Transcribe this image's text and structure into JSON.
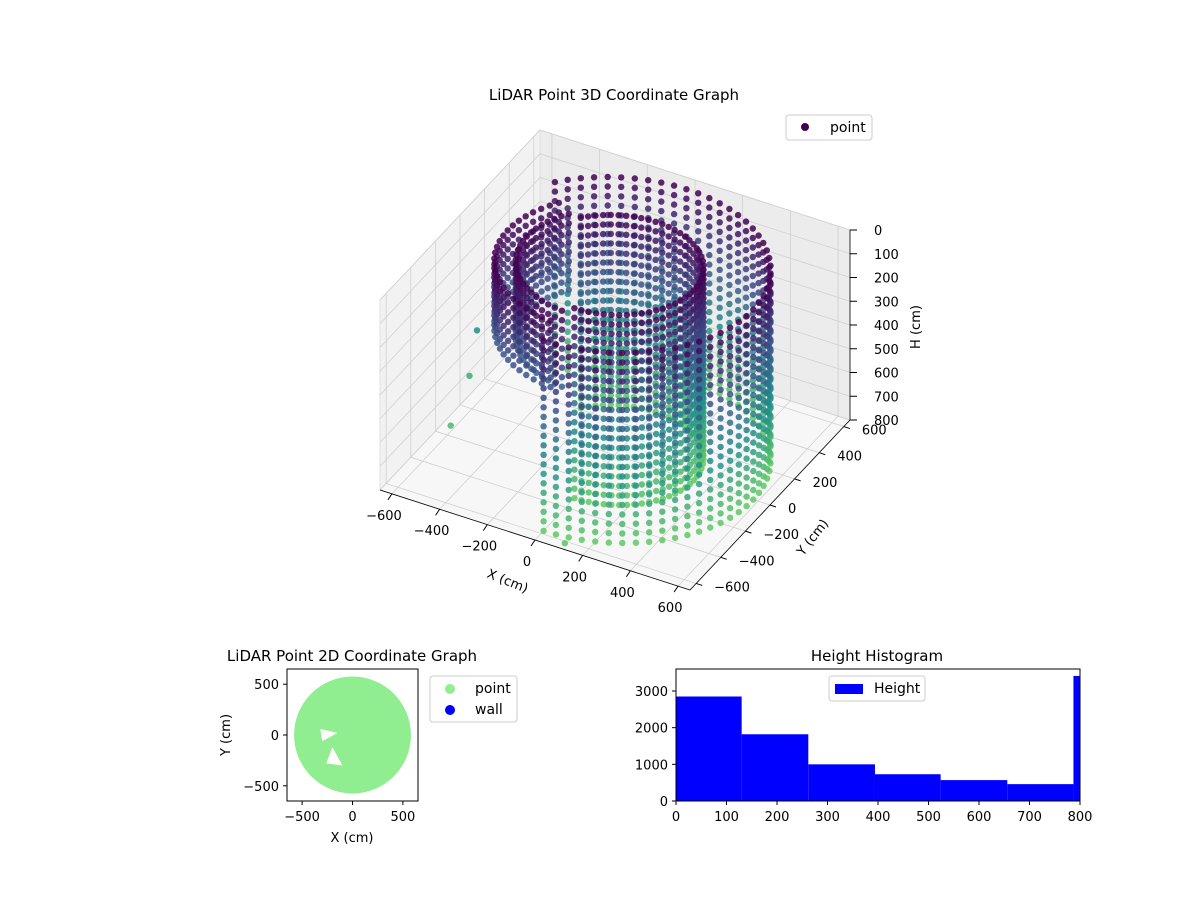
{
  "chart_data": [
    {
      "type": "scatter",
      "projection": "3d",
      "title": "LiDAR Point 3D Coordinate Graph",
      "xlabel": "X (cm)",
      "ylabel": "Y (cm)",
      "zlabel": "H (cm)",
      "xlim": [
        -650,
        650
      ],
      "ylim": [
        -650,
        650
      ],
      "zlim": [
        0,
        800
      ],
      "z_inverted": true,
      "xticks": [
        -600,
        -400,
        -200,
        0,
        200,
        400,
        600
      ],
      "yticks": [
        -600,
        -400,
        -200,
        0,
        200,
        400,
        600
      ],
      "zticks": [
        0,
        100,
        200,
        300,
        400,
        500,
        600,
        700,
        800
      ],
      "grid": true,
      "legend": {
        "placement": "top-right",
        "entries": [
          "point"
        ]
      },
      "colormap": "viridis",
      "colors": {
        "low": "#440154",
        "mid": "#31688e",
        "high": "#5ec962"
      },
      "series": [
        {
          "name": "point",
          "description_shape": "cylindrical wall",
          "ring_outer_radius": 580,
          "ring_inner_radius": 330,
          "wall_open_sector_deg": [
            145,
            265
          ],
          "height_range": [
            0,
            800
          ],
          "outliers": [
            {
              "x": -620,
              "y": 80,
              "h": 520
            },
            {
              "x": -600,
              "y": -20,
              "h": 650
            },
            {
              "x": -560,
              "y": -250,
              "h": 720
            },
            {
              "x": 120,
              "y": -640,
              "h": 780
            }
          ]
        }
      ]
    },
    {
      "type": "scatter",
      "title": "LiDAR Point 2D Coordinate Graph",
      "xlabel": "X (cm)",
      "ylabel": "Y (cm)",
      "xlim": [
        -650,
        650
      ],
      "ylim": [
        -650,
        650
      ],
      "xticks": [
        -500,
        0,
        500
      ],
      "yticks": [
        -500,
        0,
        500
      ],
      "legend": {
        "placement": "outside-right",
        "entries": [
          "point",
          "wall"
        ]
      },
      "colors": {
        "point": "#90ee90",
        "wall": "#0000ff"
      },
      "series": [
        {
          "name": "point",
          "color": "#90ee90",
          "shape": "filled disc",
          "radius": 580
        },
        {
          "name": "wall",
          "color": "#0000ff"
        }
      ]
    },
    {
      "type": "bar",
      "subtype": "histogram",
      "title": "Height Histogram",
      "xlim": [
        0,
        800
      ],
      "ylim": [
        0,
        3600
      ],
      "xticks": [
        0,
        100,
        200,
        300,
        400,
        500,
        600,
        700,
        800
      ],
      "yticks": [
        0,
        1000,
        2000,
        3000
      ],
      "legend": {
        "placement": "top-center",
        "entries": [
          "Height"
        ]
      },
      "color": "#0000ff",
      "series": [
        {
          "name": "Height",
          "bins": [
            {
              "from": 0,
              "to": 130,
              "count": 2850
            },
            {
              "from": 130,
              "to": 262,
              "count": 1820
            },
            {
              "from": 262,
              "to": 394,
              "count": 1000
            },
            {
              "from": 394,
              "to": 524,
              "count": 730
            },
            {
              "from": 524,
              "to": 656,
              "count": 570
            },
            {
              "from": 656,
              "to": 787,
              "count": 460
            },
            {
              "from": 787,
              "to": 800,
              "count": 3410
            }
          ]
        }
      ]
    }
  ]
}
